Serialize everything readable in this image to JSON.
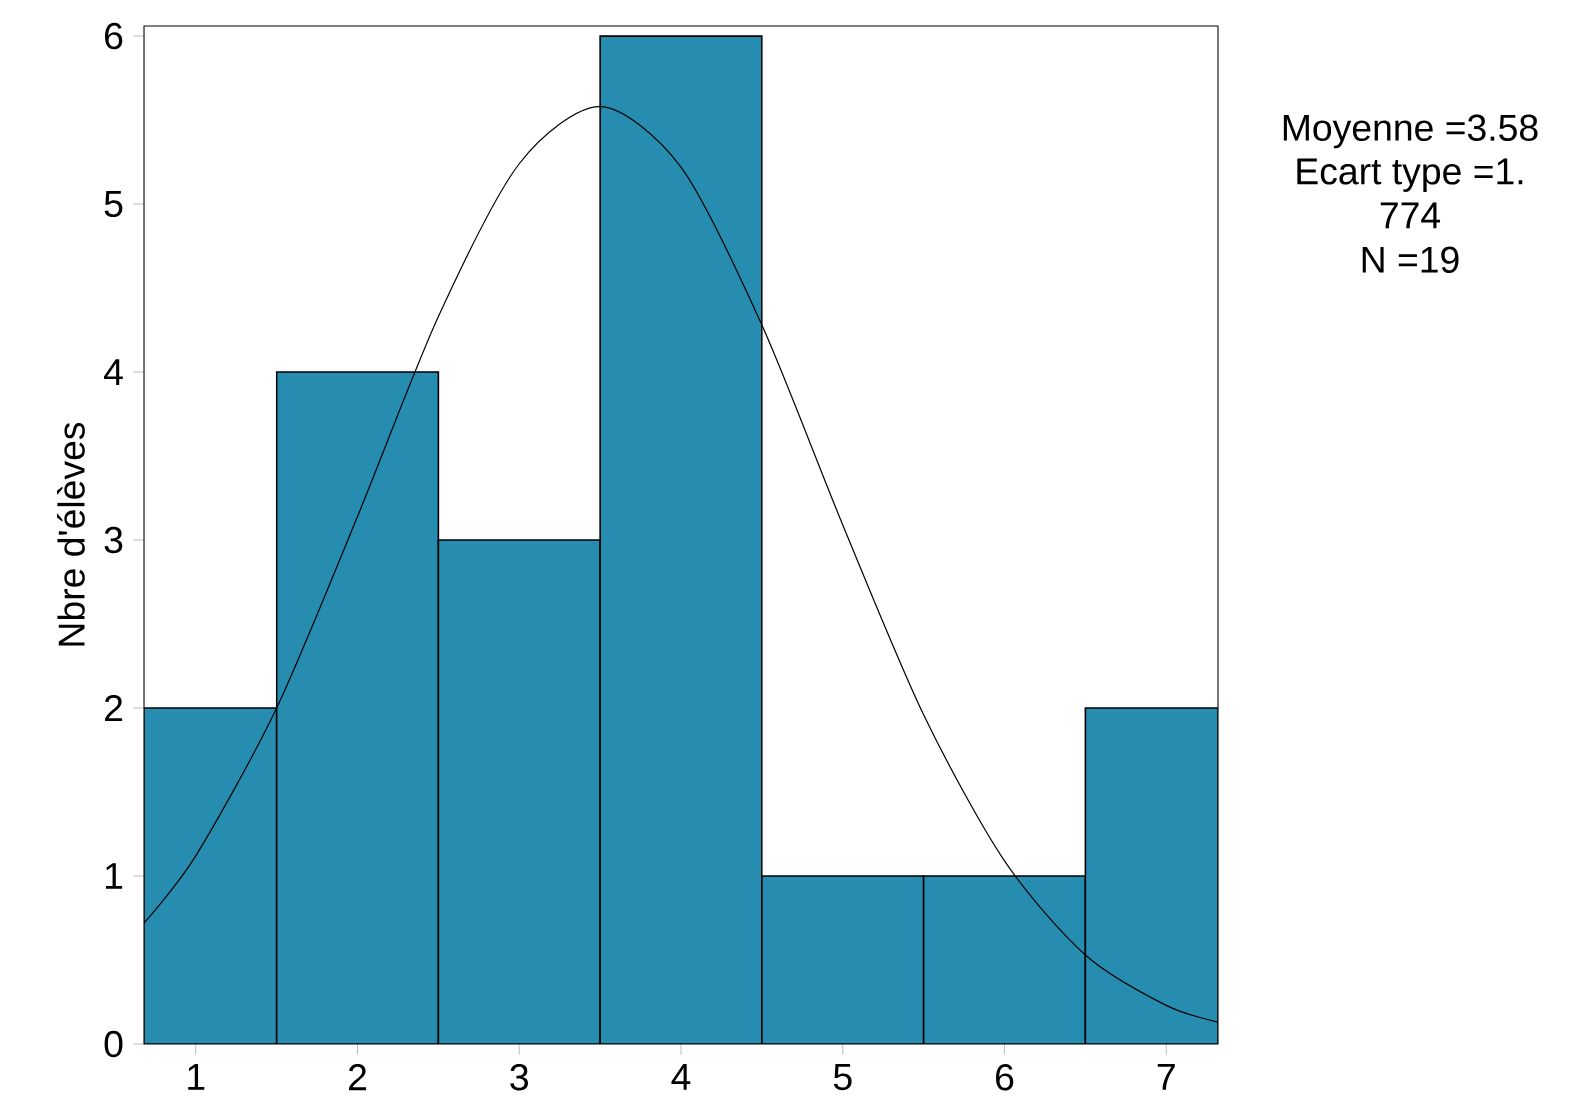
{
  "chart_data": {
    "type": "histogram",
    "ylabel": "Nbre d'élèves",
    "bins": [
      0.68,
      1.5,
      2.5,
      3.5,
      4.5,
      5.5,
      6.5,
      7.32
    ],
    "values": [
      2,
      4,
      3,
      6,
      1,
      1,
      2
    ],
    "color": "#268cb0",
    "series": [
      {
        "type": "line",
        "color": "#000000",
        "x": [
          0.68,
          1,
          1.5,
          2,
          2.5,
          3,
          3.5,
          4,
          4.5,
          5,
          5.5,
          6,
          6.5,
          7,
          7.32
        ],
        "values": [
          0.72,
          1.12,
          2.0,
          3.14,
          4.33,
          5.24,
          5.58,
          5.22,
          4.28,
          3.09,
          1.96,
          1.09,
          0.53,
          0.23,
          0.13
        ]
      }
    ],
    "xlim": [
      0.68,
      7.32
    ],
    "ylim": [
      0,
      6.06
    ],
    "xticks": [
      1,
      2,
      3,
      4,
      5,
      6,
      7
    ],
    "yticks": [
      0,
      1,
      2,
      3,
      4,
      5,
      6
    ],
    "annotations": [
      "Moyenne =3.58",
      "Ecart type =1.",
      "774",
      "N =19"
    ]
  }
}
